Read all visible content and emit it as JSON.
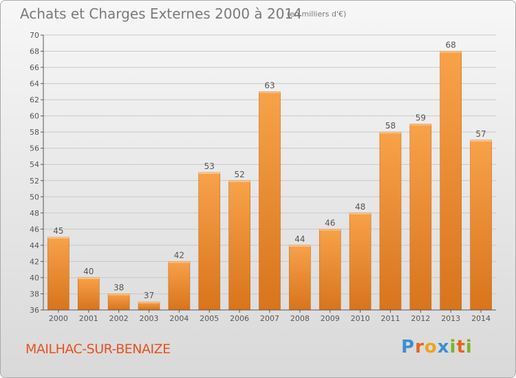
{
  "title": "Achats et Charges Externes 2000 à 2014",
  "subtitle": "(en milliers d'€)",
  "commune": "MAILHAC-SUR-BENAIZE",
  "logo": {
    "letters": [
      "P",
      "r",
      "o",
      "x",
      "i",
      "t",
      "i"
    ],
    "colors": [
      "#3a8fd6",
      "#e8641e",
      "#f2a11f",
      "#3a8fd6",
      "#78b42a",
      "#e8641e",
      "#78b42a"
    ]
  },
  "colors": {
    "bar": "#f29a43",
    "bar_dark": "#d9781f",
    "axis": "#555555",
    "grid": "#c8c8c8",
    "text": "#555555"
  },
  "chart_data": {
    "type": "bar",
    "title": "Achats et Charges Externes 2000 à 2014",
    "subtitle": "(en milliers d'€)",
    "categories": [
      "2000",
      "2001",
      "2002",
      "2003",
      "2004",
      "2005",
      "2006",
      "2007",
      "2008",
      "2009",
      "2010",
      "2011",
      "2012",
      "2013",
      "2014"
    ],
    "values": [
      45,
      40,
      38,
      37,
      42,
      53,
      52,
      63,
      44,
      46,
      48,
      58,
      59,
      68,
      57
    ],
    "ylim": [
      36,
      70
    ],
    "yticks": [
      36,
      38,
      40,
      42,
      44,
      46,
      48,
      50,
      52,
      54,
      56,
      58,
      60,
      62,
      64,
      66,
      68,
      70
    ],
    "grid": true
  }
}
